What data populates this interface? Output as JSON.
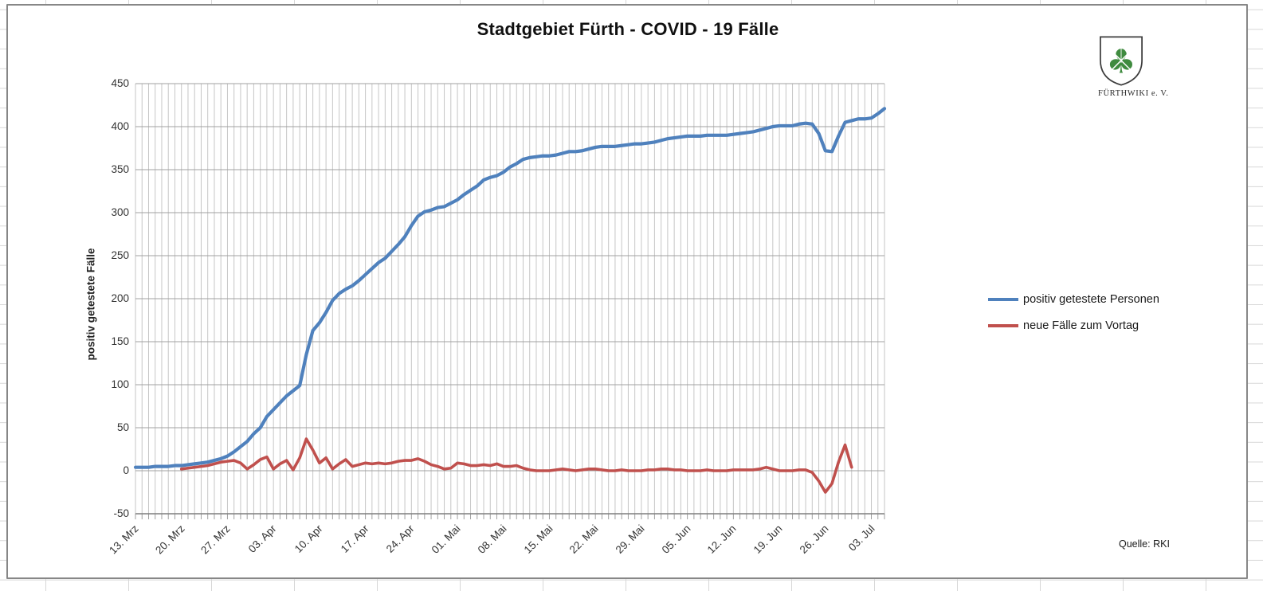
{
  "chart": {
    "title": "Stadtgebiet Fürth - COVID - 19 Fälle",
    "y_axis_title": "positiv getestete Fälle",
    "source_note": "Quelle: RKI",
    "logo": {
      "caption": "FÜRTHWIKI e. V.",
      "clover_color": "#3f8b3f",
      "shield_outline_color": "#3c3c3c"
    },
    "legend": {
      "items": [
        {
          "label": "positiv getestete Personen",
          "color": "#4F81BD"
        },
        {
          "label": "neue Fälle zum Vortag",
          "color": "#C0504D"
        }
      ]
    },
    "colors": {
      "series1": "#4F81BD",
      "series2": "#C0504D",
      "grid_vertical": "#c6c6c6",
      "grid_horizontal": "#a0a0a0",
      "axis_line": "#7f7f7f",
      "tick_text": "#333333"
    }
  },
  "chart_data": {
    "type": "line",
    "title": "Stadtgebiet Fürth - COVID - 19 Fälle",
    "xlabel": "",
    "ylabel": "positiv getestete Fälle",
    "ylim": [
      -50,
      450
    ],
    "y_tick_step": 50,
    "y_tick_labels": [
      "-50",
      "0",
      "50",
      "100",
      "150",
      "200",
      "250",
      "300",
      "350",
      "400",
      "450"
    ],
    "x_tick_labels": [
      "13. Mrz",
      "20. Mrz",
      "27. Mrz",
      "03. Apr",
      "10. Apr",
      "17. Apr",
      "24. Apr",
      "01. Mai",
      "08. Mai",
      "15. Mai",
      "22. Mai",
      "29. Mai",
      "05. Jun",
      "12. Jun",
      "19. Jun",
      "26. Jun",
      "03. Jul"
    ],
    "x_tick_interval_days": 7,
    "total_days": 114,
    "grid": "daily vertical lines, horizontal lines every 50",
    "legend_position": "right",
    "series": [
      {
        "name": "positiv getestete Personen",
        "color": "#4F81BD",
        "start_day": 0,
        "values": [
          4,
          4,
          4,
          5,
          5,
          5,
          6,
          6,
          7,
          8,
          9,
          10,
          12,
          14,
          17,
          22,
          28,
          34,
          43,
          50,
          63,
          71,
          79,
          87,
          93,
          99,
          135,
          163,
          172,
          184,
          198,
          206,
          211,
          215,
          221,
          228,
          235,
          242,
          247,
          255,
          263,
          272,
          285,
          296,
          301,
          303,
          306,
          307,
          311,
          315,
          321,
          326,
          331,
          338,
          341,
          343,
          347,
          353,
          357,
          362,
          364,
          365,
          366,
          366,
          367,
          369,
          371,
          371,
          372,
          374,
          376,
          377,
          377,
          377,
          378,
          379,
          380,
          380,
          381,
          382,
          384,
          386,
          387,
          388,
          389,
          389,
          389,
          390,
          390,
          390,
          390,
          391,
          392,
          393,
          394,
          396,
          398,
          400,
          401,
          401,
          401,
          403,
          404,
          403,
          392,
          372,
          371,
          389,
          405,
          407,
          409,
          409,
          410,
          415,
          421
        ]
      },
      {
        "name": "neue Fälle zum Vortag",
        "color": "#C0504D",
        "start_day": 7,
        "values": [
          2,
          3,
          4,
          5,
          6,
          8,
          10,
          11,
          12,
          9,
          2,
          7,
          13,
          16,
          2,
          8,
          12,
          1,
          15,
          37,
          24,
          9,
          15,
          2,
          8,
          13,
          5,
          7,
          9,
          8,
          9,
          8,
          9,
          11,
          12,
          12,
          14,
          11,
          7,
          5,
          2,
          3,
          9,
          8,
          6,
          6,
          7,
          6,
          8,
          5,
          5,
          6,
          3,
          1,
          0,
          0,
          0,
          1,
          2,
          1,
          0,
          1,
          2,
          2,
          1,
          0,
          0,
          1,
          0,
          0,
          0,
          1,
          1,
          2,
          2,
          1,
          1,
          0,
          0,
          0,
          1,
          0,
          0,
          0,
          1,
          1,
          1,
          1,
          2,
          4,
          2,
          0,
          0,
          0,
          1,
          1,
          -2,
          -12,
          -25,
          -15,
          10,
          30,
          4
        ]
      }
    ]
  }
}
